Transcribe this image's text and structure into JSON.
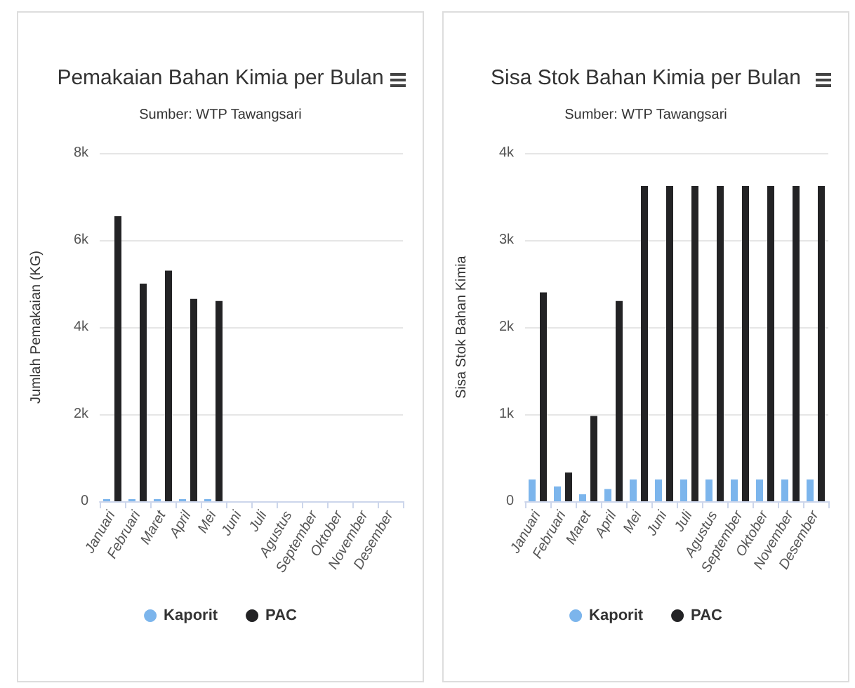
{
  "chart_data": [
    {
      "type": "bar",
      "title": "Pemakaian Bahan Kimia per Bulan",
      "subtitle": "Sumber: WTP Tawangsari",
      "ylabel": "Jumlah Pemakaian (KG)",
      "categories": [
        "Januari",
        "Februari",
        "Maret",
        "April",
        "Mei",
        "Juni",
        "Juli",
        "Agustus",
        "September",
        "Oktober",
        "November",
        "Desember"
      ],
      "series": [
        {
          "name": "Kaporit",
          "color": "#7cb5ec",
          "values": [
            50,
            50,
            50,
            50,
            50,
            null,
            null,
            null,
            null,
            null,
            null,
            null
          ]
        },
        {
          "name": "PAC",
          "color": "#232325",
          "values": [
            6550,
            5000,
            5300,
            4650,
            4600,
            null,
            null,
            null,
            null,
            null,
            null,
            null
          ]
        }
      ],
      "ylim": [
        0,
        8000
      ],
      "yticks": [
        0,
        {
          "value": 2000,
          "label": "2k"
        },
        {
          "value": 4000,
          "label": "4k"
        },
        {
          "value": 6000,
          "label": "6k"
        },
        {
          "value": 8000,
          "label": "8k"
        }
      ],
      "grid": "y",
      "legend": "bottom"
    },
    {
      "type": "bar",
      "title": "Sisa Stok Bahan Kimia per Bulan",
      "subtitle": "Sumber: WTP Tawangsari",
      "ylabel": "Sisa Stok Bahan Kimia",
      "categories": [
        "Januari",
        "Februari",
        "Maret",
        "April",
        "Mei",
        "Juni",
        "Juli",
        "Agustus",
        "September",
        "Oktober",
        "November",
        "Desember"
      ],
      "series": [
        {
          "name": "Kaporit",
          "color": "#7cb5ec",
          "values": [
            250,
            170,
            80,
            140,
            250,
            250,
            250,
            250,
            250,
            250,
            250,
            250
          ]
        },
        {
          "name": "PAC",
          "color": "#232325",
          "values": [
            2400,
            330,
            980,
            2300,
            3620,
            3620,
            3620,
            3620,
            3620,
            3620,
            3620,
            3620
          ]
        }
      ],
      "ylim": [
        0,
        4000
      ],
      "yticks": [
        0,
        {
          "value": 1000,
          "label": "1k"
        },
        {
          "value": 2000,
          "label": "2k"
        },
        {
          "value": 3000,
          "label": "3k"
        },
        {
          "value": 4000,
          "label": "4k"
        }
      ],
      "grid": "y",
      "legend": "bottom"
    }
  ]
}
